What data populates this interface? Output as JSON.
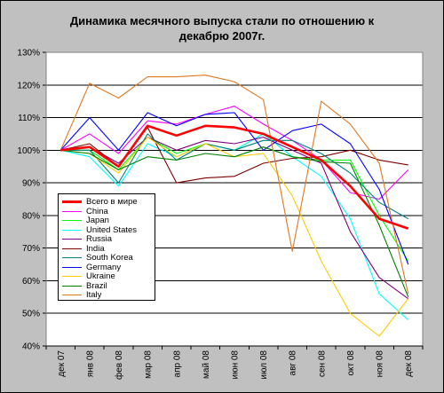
{
  "chart_data": {
    "type": "line",
    "title": "Динамика месячного выпуска стали по отношению к декабрю 2007г.",
    "title_lines": [
      "Динамика месячного выпуска стали по отношению к",
      "декабрю 2007г."
    ],
    "xlabel": "",
    "ylabel": "",
    "ylim": [
      0.4,
      1.3
    ],
    "yticks": [
      0.4,
      0.5,
      0.6,
      0.7,
      0.8,
      0.9,
      1.0,
      1.1,
      1.2,
      1.3
    ],
    "ytick_labels": [
      "40%",
      "50%",
      "60%",
      "70%",
      "80%",
      "90%",
      "100%",
      "110%",
      "120%",
      "130%"
    ],
    "categories": [
      "дек 07",
      "янв 08",
      "фев 08",
      "мар 08",
      "апр 08",
      "май 08",
      "июн 08",
      "июл 08",
      "авг 08",
      "сен 08",
      "окт 08",
      "ноя 08",
      "дек 08"
    ],
    "grid": "horizontal",
    "plot_background": "#ffffff",
    "legend_position": "lower-left inside plot",
    "series": [
      {
        "name": "Всего в мире",
        "color": "#ff0000",
        "bold": true,
        "values": [
          1.0,
          1.01,
          0.95,
          1.075,
          1.045,
          1.075,
          1.07,
          1.05,
          1.01,
          0.97,
          0.89,
          0.79,
          0.76
        ]
      },
      {
        "name": "China",
        "color": "#ff00ff",
        "values": [
          1.0,
          1.05,
          0.99,
          1.09,
          1.08,
          1.11,
          1.135,
          1.08,
          1.03,
          0.97,
          0.87,
          0.85,
          0.94
        ]
      },
      {
        "name": "Japan",
        "color": "#00ff00",
        "values": [
          1.0,
          1.0,
          0.94,
          1.04,
          0.99,
          1.02,
          1.0,
          1.05,
          0.98,
          0.97,
          0.97,
          0.8,
          0.66
        ]
      },
      {
        "name": "United States",
        "color": "#00ffff",
        "values": [
          1.0,
          0.98,
          0.89,
          1.02,
          0.98,
          1.02,
          1.0,
          1.05,
          0.98,
          0.92,
          0.79,
          0.56,
          0.48
        ]
      },
      {
        "name": "Russia",
        "color": "#800080",
        "values": [
          1.0,
          1.01,
          0.96,
          1.04,
          1.0,
          1.03,
          1.02,
          1.04,
          1.0,
          0.96,
          0.75,
          0.61,
          0.545
        ]
      },
      {
        "name": "India",
        "color": "#800000",
        "values": [
          1.0,
          1.02,
          0.95,
          1.07,
          0.9,
          0.915,
          0.92,
          0.96,
          0.975,
          0.98,
          1.0,
          0.97,
          0.955
        ]
      },
      {
        "name": "South Korea",
        "color": "#008080",
        "values": [
          1.0,
          1.0,
          0.9,
          1.05,
          0.97,
          1.02,
          1.0,
          1.03,
          1.03,
          0.99,
          0.93,
          0.84,
          0.79
        ]
      },
      {
        "name": "Germany",
        "color": "#0000ff",
        "values": [
          1.0,
          1.1,
          1.0,
          1.115,
          1.075,
          1.11,
          1.115,
          1.0,
          1.06,
          1.08,
          1.02,
          0.88,
          0.65
        ]
      },
      {
        "name": "Ukraine",
        "color": "#ffcc00",
        "values": [
          1.0,
          0.99,
          0.93,
          1.04,
          0.98,
          1.02,
          0.98,
          0.99,
          0.86,
          0.66,
          0.5,
          0.43,
          0.545
        ]
      },
      {
        "name": "Brazil",
        "color": "#008000",
        "values": [
          1.0,
          0.99,
          0.94,
          0.98,
          0.97,
          0.99,
          0.98,
          1.01,
          0.98,
          0.965,
          0.96,
          0.77,
          0.55
        ]
      },
      {
        "name": "Italy",
        "color": "#e07820",
        "values": [
          1.0,
          1.205,
          1.16,
          1.225,
          1.225,
          1.23,
          1.21,
          1.155,
          0.69,
          1.15,
          1.08,
          0.96,
          0.56
        ]
      }
    ]
  }
}
